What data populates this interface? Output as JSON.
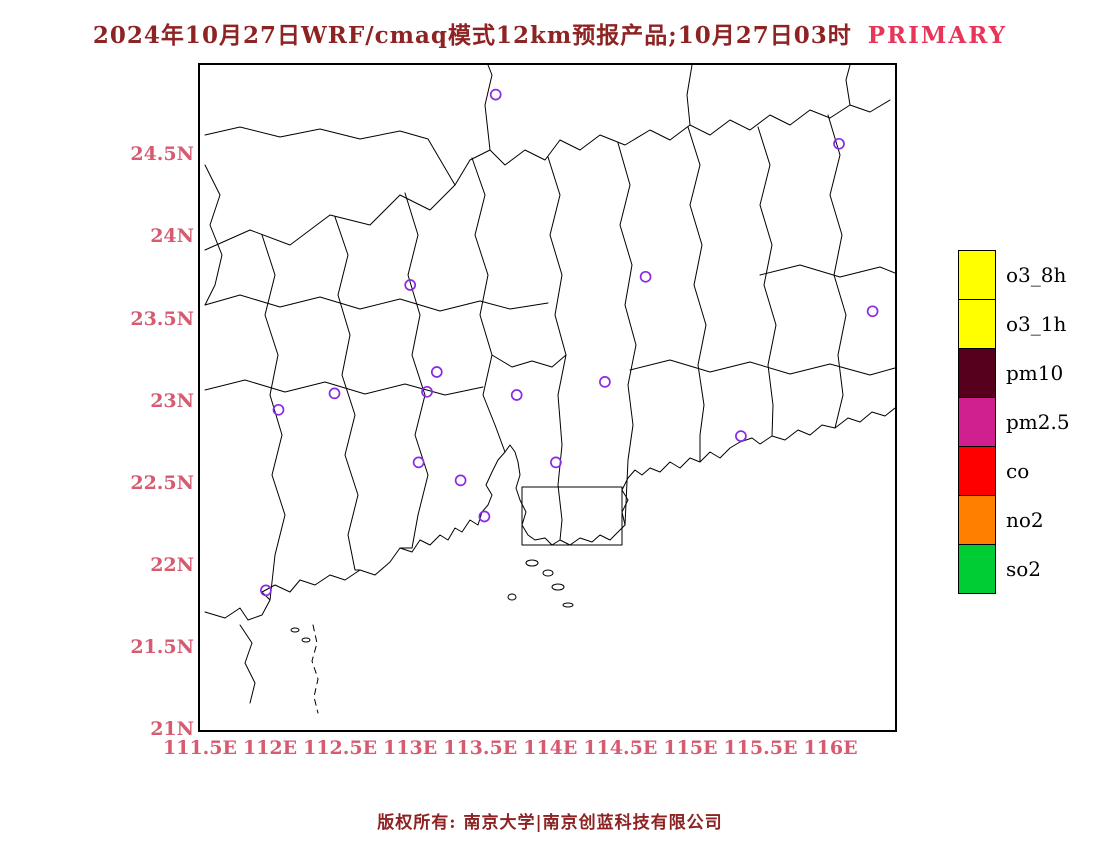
{
  "title": {
    "text": "2024年10月27日WRF/cmaq模式12km预报产品;10月27日03时",
    "highlight": "PRIMARY"
  },
  "footer": {
    "text": "版权所有: 南京大学|南京创蓝科技有限公司"
  },
  "colors": {
    "title": "#8e2323",
    "highlight": "#e8365a",
    "axis": "#d65a70",
    "footer": "#8e2323",
    "marker": "#8a2be2",
    "boundary": "#000000",
    "background": "#ffffff"
  },
  "axes": {
    "lat_ticks": [
      {
        "label": "24.5N",
        "value": 24.5
      },
      {
        "label": "24N",
        "value": 24.0
      },
      {
        "label": "23.5N",
        "value": 23.5
      },
      {
        "label": "23N",
        "value": 23.0
      },
      {
        "label": "22.5N",
        "value": 22.5
      },
      {
        "label": "22N",
        "value": 22.0
      },
      {
        "label": "21.5N",
        "value": 21.5
      },
      {
        "label": "21N",
        "value": 21.0
      }
    ],
    "lon_ticks": [
      {
        "label": "111.5E",
        "value": 111.5
      },
      {
        "label": "112E",
        "value": 112.0
      },
      {
        "label": "112.5E",
        "value": 112.5
      },
      {
        "label": "113E",
        "value": 113.0
      },
      {
        "label": "113.5E",
        "value": 113.5
      },
      {
        "label": "114E",
        "value": 114.0
      },
      {
        "label": "114.5E",
        "value": 114.5
      },
      {
        "label": "115E",
        "value": 115.0
      },
      {
        "label": "115.5E",
        "value": 115.5
      },
      {
        "label": "116E",
        "value": 116.0
      }
    ]
  },
  "legend": [
    {
      "label": "o3_8h",
      "color": "#ffff00"
    },
    {
      "label": "o3_1h",
      "color": "#ffff00"
    },
    {
      "label": "pm10",
      "color": "#56001e"
    },
    {
      "label": "pm2.5",
      "color": "#d02090"
    },
    {
      "label": "co",
      "color": "#ff0000"
    },
    {
      "label": "no2",
      "color": "#ff8000"
    },
    {
      "label": "so2",
      "color": "#00cc33"
    }
  ],
  "chart_data": {
    "type": "scatter",
    "title": "2024年10月27日WRF/cmaq模式12km预报产品;10月27日03时 PRIMARY",
    "xlabel": "",
    "ylabel": "",
    "grid": false,
    "legend_position": "right",
    "extent": {
      "lon_min": 111.5,
      "lon_max": 116.46,
      "lat_min": 21.0,
      "lat_max": 25.05
    },
    "markers": [
      {
        "lon": 113.61,
        "lat": 24.87
      },
      {
        "lon": 116.06,
        "lat": 24.57
      },
      {
        "lon": 113.0,
        "lat": 23.71
      },
      {
        "lon": 114.68,
        "lat": 23.76
      },
      {
        "lon": 116.3,
        "lat": 23.55
      },
      {
        "lon": 113.19,
        "lat": 23.18
      },
      {
        "lon": 114.39,
        "lat": 23.12
      },
      {
        "lon": 113.12,
        "lat": 23.06
      },
      {
        "lon": 113.76,
        "lat": 23.04
      },
      {
        "lon": 112.46,
        "lat": 23.05
      },
      {
        "lon": 112.06,
        "lat": 22.95
      },
      {
        "lon": 115.36,
        "lat": 22.79
      },
      {
        "lon": 113.06,
        "lat": 22.63
      },
      {
        "lon": 114.04,
        "lat": 22.63
      },
      {
        "lon": 113.36,
        "lat": 22.52
      },
      {
        "lon": 113.53,
        "lat": 22.3
      },
      {
        "lon": 111.97,
        "lat": 21.85
      }
    ]
  }
}
